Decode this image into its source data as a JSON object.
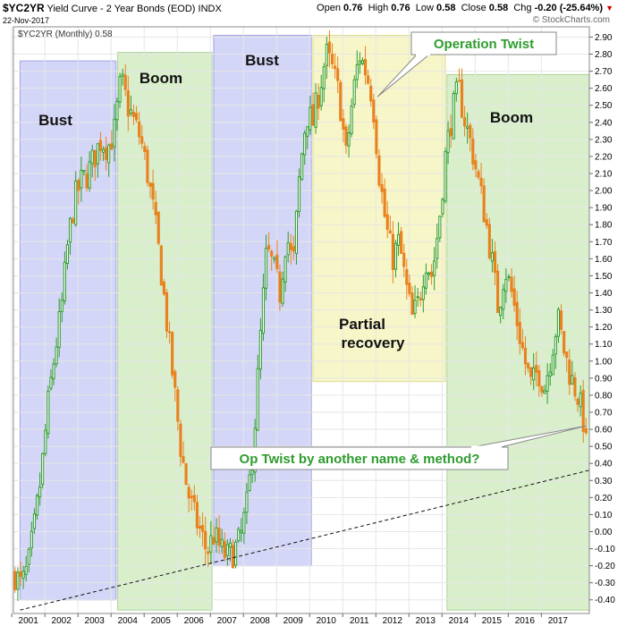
{
  "header": {
    "symbol": "$YC2YR",
    "title": "Yield Curve - 2 Year Bonds (EOD)",
    "exchange": "INDX",
    "date": "22-Nov-2017",
    "ohlc": {
      "open_label": "Open",
      "open": "0.76",
      "high_label": "High",
      "high": "0.76",
      "low_label": "Low",
      "low": "0.58",
      "close_label": "Close",
      "close": "0.58",
      "chg_label": "Chg",
      "chg": "-0.20 (-25.64%)"
    },
    "copyright": "© StockCharts.com",
    "legend": "$YC2YR (Monthly) 0.58"
  },
  "colors": {
    "up": "#2e9c2e",
    "down": "#e8821e",
    "bust_zone": "#d4d6f7",
    "boom_zone": "#d9efcc",
    "recovery_zone": "#f7f6c8",
    "annotation_green": "#2e9c2e"
  },
  "chart_data": {
    "type": "candlestick",
    "title": "Yield Curve - 2 Year Bonds (EOD)",
    "interval": "Monthly",
    "x_tick_labels": [
      "2001",
      "2002",
      "2003",
      "2004",
      "2005",
      "2006",
      "2007",
      "2008",
      "2009",
      "2010",
      "2011",
      "2012",
      "2013",
      "2014",
      "2015",
      "2016",
      "2017"
    ],
    "y_ticks": [
      -0.4,
      -0.3,
      -0.2,
      -0.1,
      0.0,
      0.1,
      0.2,
      0.3,
      0.4,
      0.5,
      0.6,
      0.7,
      0.8,
      0.9,
      1.0,
      1.1,
      1.2,
      1.3,
      1.4,
      1.5,
      1.6,
      1.7,
      1.8,
      1.9,
      2.0,
      2.1,
      2.2,
      2.3,
      2.4,
      2.5,
      2.6,
      2.7,
      2.8,
      2.9
    ],
    "ylim": [
      -0.48,
      2.96
    ],
    "xlim": [
      2000.55,
      2017.95
    ],
    "zones": [
      {
        "label": "Bust",
        "kind": "bust",
        "x0": 2000.75,
        "x1": 2003.65,
        "y0": -0.4,
        "y1": 2.76
      },
      {
        "label": "Boom",
        "kind": "boom",
        "x0": 2003.7,
        "x1": 2006.55,
        "y0": -0.46,
        "y1": 2.81
      },
      {
        "label": "Bust",
        "kind": "bust",
        "x0": 2006.6,
        "x1": 2009.55,
        "y0": -0.2,
        "y1": 2.91
      },
      {
        "label": "Partial recovery",
        "kind": "recovery",
        "x0": 2009.6,
        "x1": 2013.6,
        "y0": 0.88,
        "y1": 2.91
      },
      {
        "label": "Boom",
        "kind": "boom",
        "x0": 2013.65,
        "x1": 2017.95,
        "y0": -0.46,
        "y1": 2.68
      }
    ],
    "series": [
      {
        "name": "$YC2YR (Monthly)",
        "points": [
          [
            2000.6,
            -0.25
          ],
          [
            2000.8,
            -0.32
          ],
          [
            2001.0,
            -0.2
          ],
          [
            2001.2,
            0.05
          ],
          [
            2001.4,
            0.35
          ],
          [
            2001.6,
            0.75
          ],
          [
            2001.8,
            1.05
          ],
          [
            2002.0,
            1.3
          ],
          [
            2002.2,
            1.7
          ],
          [
            2002.4,
            1.95
          ],
          [
            2002.6,
            2.05
          ],
          [
            2002.8,
            2.1
          ],
          [
            2003.0,
            2.2
          ],
          [
            2003.2,
            2.3
          ],
          [
            2003.4,
            2.25
          ],
          [
            2003.6,
            2.35
          ],
          [
            2003.8,
            2.65
          ],
          [
            2004.0,
            2.5
          ],
          [
            2004.2,
            2.4
          ],
          [
            2004.4,
            2.3
          ],
          [
            2004.6,
            2.1
          ],
          [
            2004.8,
            1.85
          ],
          [
            2005.0,
            1.55
          ],
          [
            2005.2,
            1.2
          ],
          [
            2005.4,
            0.85
          ],
          [
            2005.6,
            0.5
          ],
          [
            2005.8,
            0.25
          ],
          [
            2006.0,
            0.1
          ],
          [
            2006.2,
            0.0
          ],
          [
            2006.4,
            -0.12
          ],
          [
            2006.6,
            -0.02
          ],
          [
            2006.8,
            -0.1
          ],
          [
            2007.0,
            -0.15
          ],
          [
            2007.2,
            -0.12
          ],
          [
            2007.4,
            -0.05
          ],
          [
            2007.6,
            0.15
          ],
          [
            2007.8,
            0.5
          ],
          [
            2008.0,
            1.1
          ],
          [
            2008.2,
            1.65
          ],
          [
            2008.4,
            1.55
          ],
          [
            2008.6,
            1.4
          ],
          [
            2008.8,
            1.75
          ],
          [
            2009.0,
            1.55
          ],
          [
            2009.2,
            2.1
          ],
          [
            2009.4,
            2.45
          ],
          [
            2009.6,
            2.4
          ],
          [
            2009.8,
            2.6
          ],
          [
            2010.0,
            2.8
          ],
          [
            2010.2,
            2.7
          ],
          [
            2010.4,
            2.55
          ],
          [
            2010.6,
            2.2
          ],
          [
            2010.8,
            2.55
          ],
          [
            2011.0,
            2.8
          ],
          [
            2011.2,
            2.7
          ],
          [
            2011.4,
            2.55
          ],
          [
            2011.6,
            2.1
          ],
          [
            2011.8,
            1.8
          ],
          [
            2012.0,
            1.6
          ],
          [
            2012.2,
            1.7
          ],
          [
            2012.4,
            1.45
          ],
          [
            2012.6,
            1.25
          ],
          [
            2012.8,
            1.35
          ],
          [
            2013.0,
            1.6
          ],
          [
            2013.2,
            1.5
          ],
          [
            2013.4,
            1.8
          ],
          [
            2013.6,
            2.2
          ],
          [
            2013.8,
            2.45
          ],
          [
            2014.0,
            2.6
          ],
          [
            2014.2,
            2.4
          ],
          [
            2014.4,
            2.25
          ],
          [
            2014.6,
            2.05
          ],
          [
            2014.8,
            1.85
          ],
          [
            2015.0,
            1.6
          ],
          [
            2015.2,
            1.3
          ],
          [
            2015.4,
            1.55
          ],
          [
            2015.6,
            1.4
          ],
          [
            2015.8,
            1.2
          ],
          [
            2016.0,
            1.0
          ],
          [
            2016.2,
            0.85
          ],
          [
            2016.4,
            0.95
          ],
          [
            2016.6,
            0.85
          ],
          [
            2016.8,
            1.05
          ],
          [
            2017.0,
            1.25
          ],
          [
            2017.2,
            1.05
          ],
          [
            2017.4,
            0.9
          ],
          [
            2017.6,
            0.8
          ],
          [
            2017.85,
            0.58
          ]
        ]
      }
    ],
    "trendline": {
      "from": [
        2000.75,
        -0.46
      ],
      "to": [
        2017.95,
        0.36
      ],
      "style": "dashed"
    },
    "annotations": [
      {
        "text": "Operation Twist",
        "at": [
          2011.55,
          2.55
        ]
      },
      {
        "text": "Op Twist by another name & method?",
        "at": [
          2017.85,
          0.62
        ]
      }
    ]
  }
}
